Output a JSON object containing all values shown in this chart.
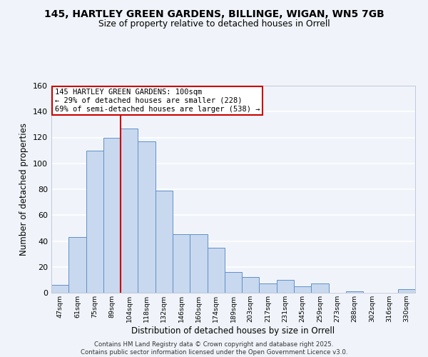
{
  "title": "145, HARTLEY GREEN GARDENS, BILLINGE, WIGAN, WN5 7GB",
  "subtitle": "Size of property relative to detached houses in Orrell",
  "xlabel": "Distribution of detached houses by size in Orrell",
  "ylabel": "Number of detached properties",
  "bar_color": "#c8d8ee",
  "bar_edge_color": "#6090c8",
  "background_color": "#f0f4fa",
  "grid_color": "#ffffff",
  "annotation_box_color": "#ffffff",
  "annotation_border_color": "#cc0000",
  "vline_color": "#cc0000",
  "annotation_text_line1": "145 HARTLEY GREEN GARDENS: 100sqm",
  "annotation_text_line2": "← 29% of detached houses are smaller (228)",
  "annotation_text_line3": "69% of semi-detached houses are larger (538) →",
  "categories": [
    "47sqm",
    "61sqm",
    "75sqm",
    "89sqm",
    "104sqm",
    "118sqm",
    "132sqm",
    "146sqm",
    "160sqm",
    "174sqm",
    "189sqm",
    "203sqm",
    "217sqm",
    "231sqm",
    "245sqm",
    "259sqm",
    "273sqm",
    "288sqm",
    "302sqm",
    "316sqm",
    "330sqm"
  ],
  "values": [
    6,
    43,
    110,
    120,
    127,
    117,
    79,
    45,
    45,
    35,
    16,
    12,
    7,
    10,
    5,
    7,
    0,
    1,
    0,
    0,
    3
  ],
  "ylim": [
    0,
    160
  ],
  "yticks": [
    0,
    20,
    40,
    60,
    80,
    100,
    120,
    140,
    160
  ],
  "vline_index": 4,
  "footer_line1": "Contains HM Land Registry data © Crown copyright and database right 2025.",
  "footer_line2": "Contains public sector information licensed under the Open Government Licence v3.0."
}
